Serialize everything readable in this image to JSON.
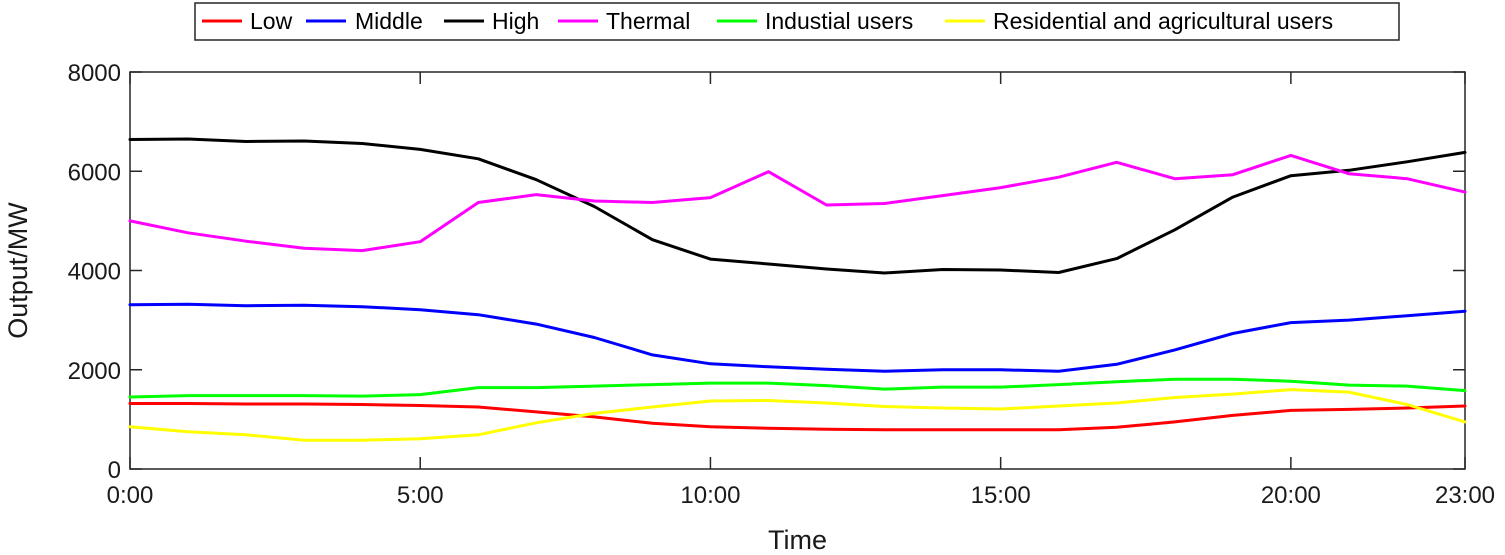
{
  "chart_data": {
    "type": "line",
    "title": "",
    "xlabel": "Time",
    "ylabel": "Output/MW",
    "xlim": [
      0,
      23
    ],
    "ylim": [
      0,
      8000
    ],
    "x": [
      0,
      1,
      2,
      3,
      4,
      5,
      6,
      7,
      8,
      9,
      10,
      11,
      12,
      13,
      14,
      15,
      16,
      17,
      18,
      19,
      20,
      21,
      22,
      23
    ],
    "x_ticks": [
      {
        "value": 0,
        "label": "0:00"
      },
      {
        "value": 5,
        "label": "5:00"
      },
      {
        "value": 10,
        "label": "10:00"
      },
      {
        "value": 15,
        "label": "15:00"
      },
      {
        "value": 20,
        "label": "20:00"
      },
      {
        "value": 23,
        "label": "23:00"
      }
    ],
    "y_ticks": [
      {
        "value": 0,
        "label": "0"
      },
      {
        "value": 2000,
        "label": "2000"
      },
      {
        "value": 4000,
        "label": "4000"
      },
      {
        "value": 6000,
        "label": "6000"
      },
      {
        "value": 8000,
        "label": "8000"
      }
    ],
    "grid": false,
    "legend_position": "top",
    "series": [
      {
        "name": "Low",
        "color": "#ff0000",
        "values": [
          1320,
          1320,
          1310,
          1310,
          1300,
          1280,
          1250,
          1150,
          1050,
          920,
          850,
          820,
          800,
          790,
          790,
          790,
          790,
          840,
          950,
          1080,
          1180,
          1200,
          1230,
          1270
        ]
      },
      {
        "name": "Middle",
        "color": "#0000ff",
        "values": [
          3310,
          3320,
          3290,
          3300,
          3270,
          3210,
          3110,
          2920,
          2650,
          2300,
          2120,
          2060,
          2010,
          1970,
          2000,
          2000,
          1970,
          2110,
          2400,
          2730,
          2950,
          3000,
          3090,
          3180
        ]
      },
      {
        "name": "High",
        "color": "#000000",
        "values": [
          6640,
          6650,
          6600,
          6610,
          6560,
          6440,
          6250,
          5830,
          5290,
          4620,
          4230,
          4130,
          4030,
          3950,
          4020,
          4010,
          3960,
          4240,
          4820,
          5480,
          5910,
          6020,
          6190,
          6380
        ]
      },
      {
        "name": "Thermal",
        "color": "#ff00ff",
        "values": [
          5000,
          4760,
          4590,
          4450,
          4400,
          4580,
          5370,
          5530,
          5400,
          5370,
          5470,
          5990,
          5320,
          5350,
          5510,
          5670,
          5880,
          6180,
          5850,
          5930,
          6320,
          5950,
          5850,
          5580
        ]
      },
      {
        "name": "Industial users",
        "color": "#00ff00",
        "values": [
          1450,
          1480,
          1480,
          1480,
          1470,
          1500,
          1640,
          1640,
          1670,
          1700,
          1730,
          1730,
          1680,
          1610,
          1650,
          1650,
          1700,
          1760,
          1810,
          1810,
          1770,
          1690,
          1670,
          1580
        ]
      },
      {
        "name": "Residential and agricultural users",
        "color": "#ffff00",
        "values": [
          850,
          750,
          690,
          580,
          580,
          610,
          690,
          930,
          1120,
          1250,
          1370,
          1380,
          1330,
          1260,
          1230,
          1210,
          1270,
          1330,
          1440,
          1510,
          1600,
          1550,
          1300,
          950
        ]
      }
    ]
  }
}
